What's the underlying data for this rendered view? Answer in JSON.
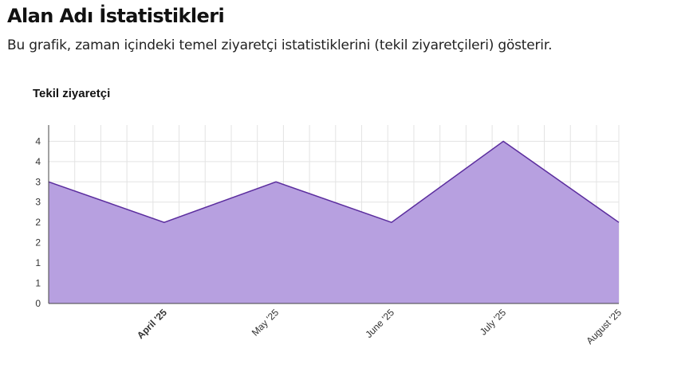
{
  "page": {
    "title": "Alan Adı İstatistikleri",
    "description": "Bu grafik, zaman içindeki temel ziyaretçi istatistiklerini (tekil ziyaretçileri) gösterir."
  },
  "chart_data": {
    "type": "area",
    "title": "Tekil ziyaretçi",
    "xlabel": "",
    "ylabel": "",
    "x": [
      "2025-03-01",
      "2025-04-01",
      "2025-05-01",
      "2025-06-01",
      "2025-07-01",
      "2025-08-01"
    ],
    "x_tick_labels": [
      "April '25",
      "May '25",
      "June '25",
      "July '25",
      "August '25"
    ],
    "x_tick_dates": [
      "2025-04-01",
      "2025-05-01",
      "2025-06-01",
      "2025-07-01",
      "2025-08-01"
    ],
    "y_tick_labels": [
      "0",
      "1",
      "1",
      "2",
      "2",
      "3",
      "3",
      "4",
      "4"
    ],
    "y_tick_values": [
      0,
      0.5,
      1,
      1.5,
      2,
      2.5,
      3,
      3.5,
      4
    ],
    "ylim": [
      0,
      4.4
    ],
    "grid": true,
    "legend": "none",
    "series": [
      {
        "values": [
          3,
          2,
          3,
          2,
          4,
          2
        ]
      }
    ],
    "colors": {
      "fill": "#b7a0e0",
      "line": "#5b2d9e",
      "grid": "#e3e3e3",
      "axis": "#444444"
    }
  }
}
